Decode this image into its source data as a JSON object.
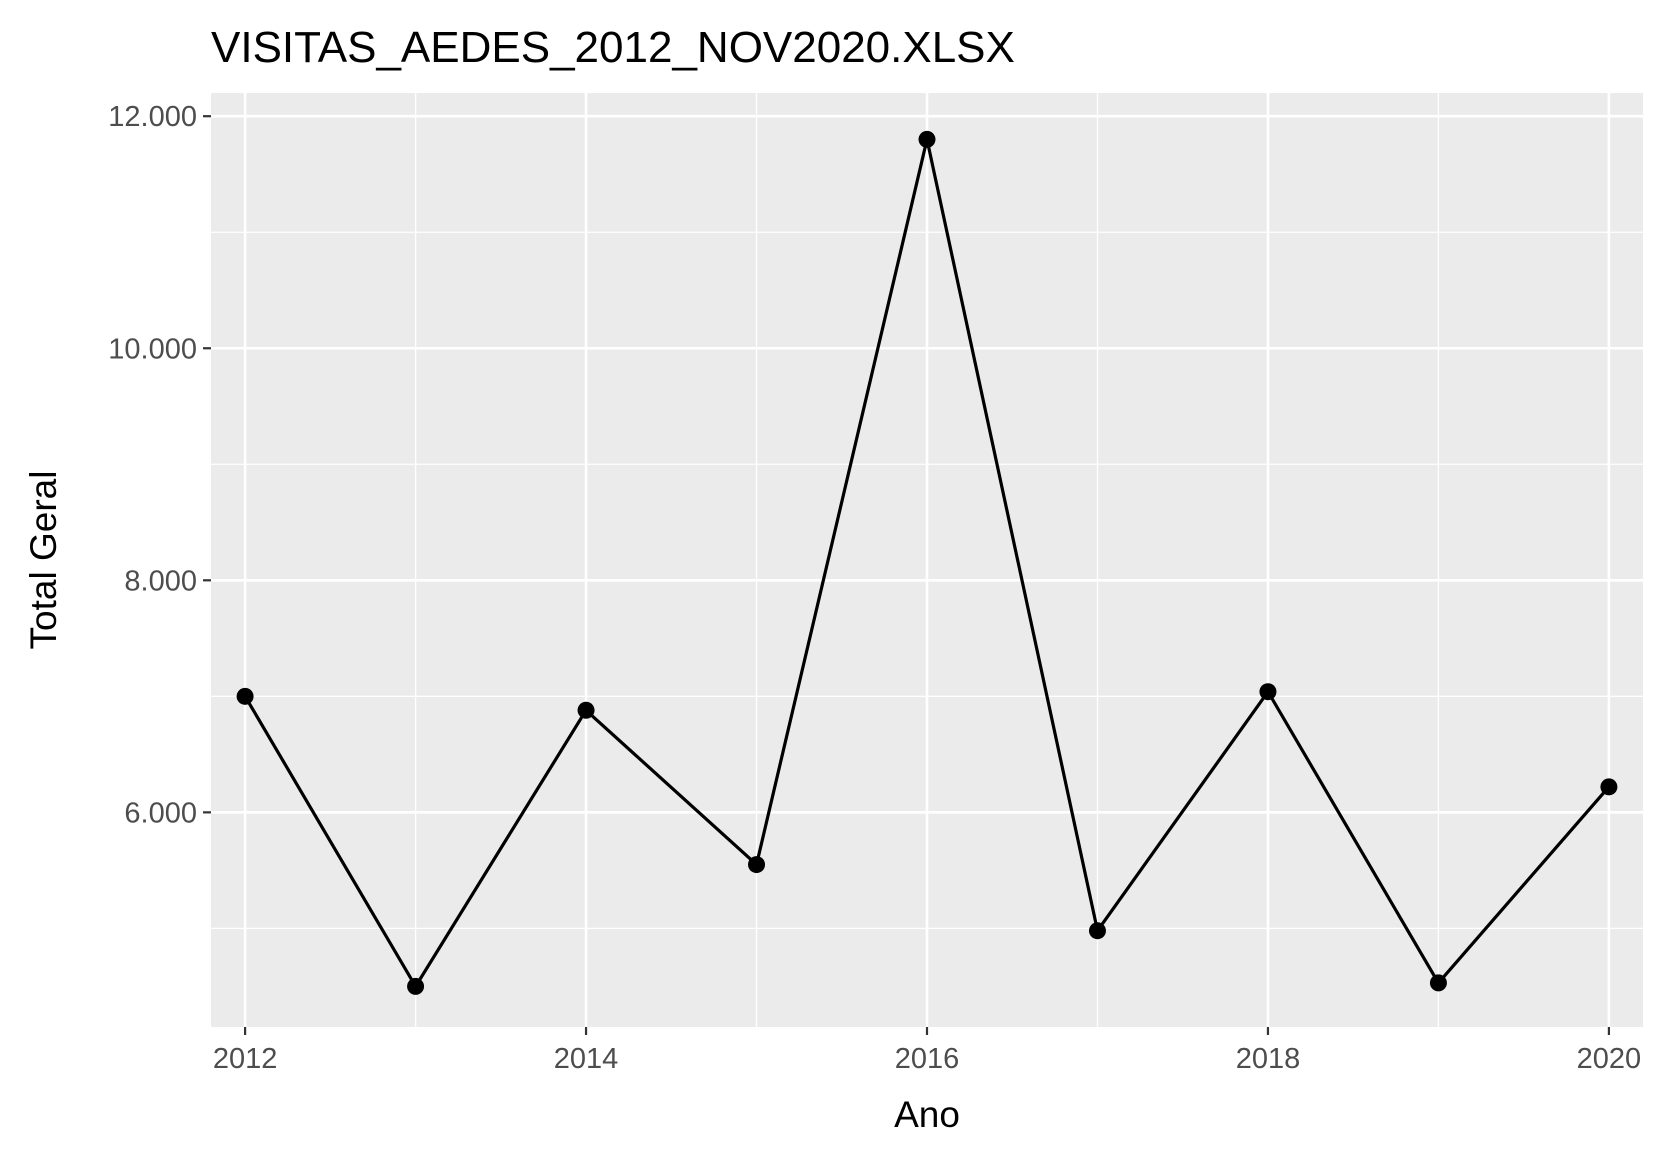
{
  "chart_data": {
    "type": "line",
    "title": "VISITAS_AEDES_2012_NOV2020.XLSX",
    "xlabel": "Ano",
    "ylabel": "Total Geral",
    "x": [
      2012,
      2013,
      2014,
      2015,
      2016,
      2017,
      2018,
      2019,
      2020
    ],
    "series": [
      {
        "values": [
          7000,
          4500,
          6880,
          5550,
          11800,
          4980,
          7040,
          4530,
          6220
        ]
      }
    ],
    "xlim": [
      2011.8,
      2020.2
    ],
    "ylim": [
      4150,
      12200
    ],
    "x_ticks": [
      2012,
      2014,
      2016,
      2018,
      2020
    ],
    "x_tick_labels": [
      "2012",
      "2014",
      "2016",
      "2018",
      "2020"
    ],
    "y_ticks": [
      6000,
      8000,
      10000,
      12000
    ],
    "y_tick_labels": [
      "6.000",
      "8.000",
      "10.000",
      "12.000"
    ],
    "x_minor_ticks": [
      2013,
      2015,
      2017,
      2019
    ],
    "y_minor_ticks": [
      5000,
      7000,
      9000,
      11000
    ],
    "grid": true,
    "legend": "none",
    "colors": {
      "panel": "#ebebeb",
      "grid": "#ffffff",
      "line": "#000000",
      "point": "#000000"
    }
  }
}
